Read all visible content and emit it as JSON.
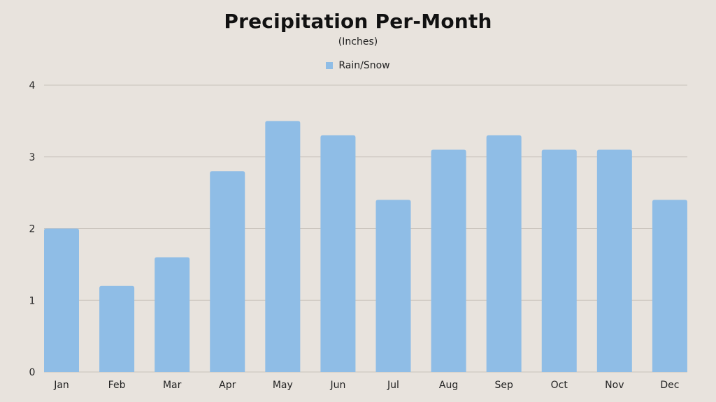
{
  "chart_data": {
    "type": "bar",
    "title": "Precipitation Per-Month",
    "subtitle": "(Inches)",
    "xlabel": "",
    "ylabel": "",
    "categories": [
      "Jan",
      "Feb",
      "Mar",
      "Apr",
      "May",
      "Jun",
      "Jul",
      "Aug",
      "Sep",
      "Oct",
      "Nov",
      "Dec"
    ],
    "series": [
      {
        "name": "Rain/Snow",
        "values": [
          2.0,
          1.2,
          1.6,
          2.8,
          3.5,
          3.3,
          2.4,
          3.1,
          3.3,
          3.1,
          3.1,
          2.4
        ],
        "color": "#8fbde6"
      }
    ],
    "ylim": [
      0,
      4
    ],
    "yticks": [
      "0",
      "1",
      "2",
      "3",
      "4"
    ],
    "grid": true,
    "legend_position": "top-center"
  },
  "colors": {
    "background": "#e8e3dd",
    "gridline": "#c9c3bc",
    "bar": "#8fbde6"
  }
}
